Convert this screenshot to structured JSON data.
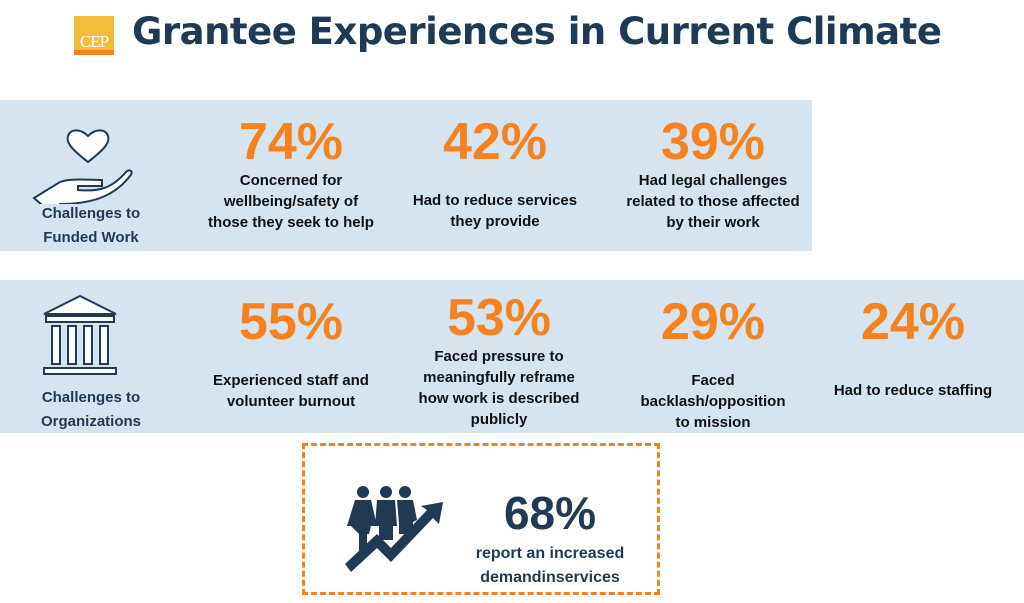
{
  "header": {
    "logo_text": "CEP",
    "title": "Grantee Experiences in Current Climate"
  },
  "colors": {
    "accent": "#f5821f",
    "navy": "#1f3a52",
    "band": "#d6e4f0"
  },
  "funded_work": {
    "icon": "hand-heart-icon",
    "label_line1": "Challenges to",
    "label_line2": "Funded Work",
    "stats": [
      {
        "value": "74%",
        "desc": "Concerned for wellbeing/safety of those they seek to help"
      },
      {
        "value": "42%",
        "desc": "Had to reduce services they provide"
      },
      {
        "value": "39%",
        "desc": "Had legal challenges related to those affected by their work"
      }
    ]
  },
  "organizations": {
    "icon": "institution-building-icon",
    "label_line1": "Challenges to",
    "label_line2": "Organizations",
    "stats": [
      {
        "value": "55%",
        "desc": "Experienced staff and volunteer burnout"
      },
      {
        "value": "53%",
        "desc": "Faced pressure to meaningfully reframe how work is described publicly"
      },
      {
        "value": "29%",
        "desc": "Faced backlash/opposition to mission"
      },
      {
        "value": "24%",
        "desc": "Had to reduce staffing"
      }
    ]
  },
  "highlight": {
    "icon": "people-growth-arrow-icon",
    "value": "68%",
    "desc_line1": "report an increased",
    "desc_line2": "demandinservices"
  }
}
